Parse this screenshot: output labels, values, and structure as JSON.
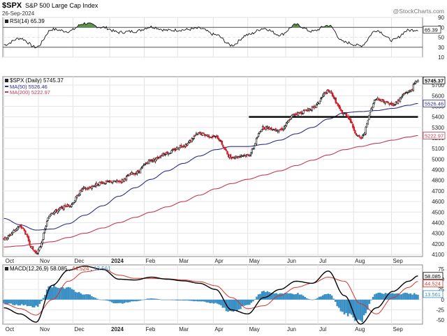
{
  "header": {
    "symbol": "$SPX",
    "name": "S&P 500 Large Cap Index",
    "date": "26-Sep-2024",
    "credit": "@StockCharts.com"
  },
  "colors": {
    "price_up": "#111111",
    "price_down": "#d0202a",
    "ma50": "#2e2e8a",
    "ma200": "#c43a52",
    "macd": "#000000",
    "signal": "#d2352b",
    "histogram": "#3a8fc4",
    "rsi_fill": "#4b8a3a",
    "support": "#000000"
  },
  "chart_data": [
    {
      "panel": "rsi",
      "type": "line",
      "title": "RSI(14) 65.39",
      "last_label": "65.39",
      "y_ticks": [
        "90",
        "70",
        "50",
        "30",
        "10"
      ],
      "ylim": [
        10,
        90
      ],
      "overbought": 70,
      "oversold": 30,
      "x": [
        "2023-10-02",
        "2023-10-16",
        "2023-10-30",
        "2023-11-13",
        "2023-11-27",
        "2023-12-11",
        "2023-12-27",
        "2024-01-10",
        "2024-01-24",
        "2024-02-07",
        "2024-02-21",
        "2024-03-06",
        "2024-03-20",
        "2024-04-03",
        "2024-04-17",
        "2024-05-01",
        "2024-05-15",
        "2024-05-29",
        "2024-06-12",
        "2024-06-26",
        "2024-07-10",
        "2024-07-24",
        "2024-08-07",
        "2024-08-21",
        "2024-09-04",
        "2024-09-18",
        "2024-09-26"
      ],
      "values": [
        35,
        48,
        30,
        66,
        62,
        78,
        70,
        60,
        62,
        71,
        64,
        65,
        68,
        55,
        34,
        55,
        68,
        55,
        75,
        62,
        74,
        40,
        33,
        64,
        44,
        64,
        65.39
      ]
    },
    {
      "panel": "price",
      "type": "line",
      "title": "$SPX (Daily) 5745.37",
      "series_labels": [
        "MA(50) 5526.46",
        "MA(200) 5222.97"
      ],
      "last_labels": [
        "5745.37",
        "5526.46",
        "5222.97"
      ],
      "y_ticks": [
        "5700",
        "5600",
        "5500",
        "5400",
        "5300",
        "5200",
        "5100",
        "5000",
        "4900",
        "4800",
        "4700",
        "4600",
        "4500",
        "4400",
        "4300",
        "4200",
        "4100"
      ],
      "ylim": [
        4080,
        5780
      ],
      "support_level": 5400,
      "x_ticks": [
        "Oct",
        "Nov",
        "Dec",
        "2024",
        "Feb",
        "Mar",
        "Apr",
        "May",
        "Jun",
        "Jul",
        "Aug",
        "Sep"
      ],
      "x": [
        "2023-10-02",
        "2023-10-16",
        "2023-10-30",
        "2023-11-13",
        "2023-11-27",
        "2023-12-11",
        "2023-12-27",
        "2024-01-10",
        "2024-01-24",
        "2024-02-07",
        "2024-02-21",
        "2024-03-06",
        "2024-03-20",
        "2024-04-03",
        "2024-04-17",
        "2024-05-01",
        "2024-05-15",
        "2024-05-29",
        "2024-06-12",
        "2024-06-26",
        "2024-07-10",
        "2024-07-24",
        "2024-08-07",
        "2024-08-21",
        "2024-09-04",
        "2024-09-18",
        "2024-09-26"
      ],
      "close": [
        4250,
        4360,
        4120,
        4500,
        4560,
        4720,
        4780,
        4790,
        4870,
        4990,
        5060,
        5130,
        5240,
        5210,
        5020,
        5040,
        5300,
        5280,
        5430,
        5480,
        5640,
        5430,
        5200,
        5570,
        5520,
        5640,
        5745.37
      ],
      "ma50": [
        4440,
        4380,
        4330,
        4340,
        4390,
        4470,
        4560,
        4650,
        4730,
        4810,
        4890,
        4960,
        5030,
        5090,
        5120,
        5120,
        5140,
        5180,
        5240,
        5300,
        5380,
        5440,
        5450,
        5460,
        5480,
        5510,
        5526.46
      ],
      "ma200": [
        4170,
        4180,
        4200,
        4220,
        4260,
        4300,
        4350,
        4400,
        4450,
        4500,
        4550,
        4600,
        4660,
        4720,
        4770,
        4810,
        4850,
        4890,
        4940,
        4990,
        5040,
        5090,
        5120,
        5150,
        5180,
        5210,
        5222.97
      ]
    },
    {
      "panel": "macd",
      "type": "line",
      "title": "MACD(12,26,9) 58.085, 44.524, 13.561",
      "legend": {
        "name": "MACD(12,26,9)",
        "macd": "58.085",
        "signal": "44.524",
        "histogram": "13.561"
      },
      "last_labels": [
        "58.085",
        "44.524",
        "13.561"
      ],
      "y_ticks": [
        "75",
        "50",
        "25",
        "0",
        "-25",
        "-50"
      ],
      "ylim": [
        -60,
        85
      ],
      "x": [
        "2023-10-02",
        "2023-10-16",
        "2023-10-30",
        "2023-11-13",
        "2023-11-27",
        "2023-12-11",
        "2023-12-27",
        "2024-01-10",
        "2024-01-24",
        "2024-02-07",
        "2024-02-21",
        "2024-03-06",
        "2024-03-20",
        "2024-04-03",
        "2024-04-17",
        "2024-05-01",
        "2024-05-15",
        "2024-05-29",
        "2024-06-12",
        "2024-06-26",
        "2024-07-10",
        "2024-07-24",
        "2024-08-07",
        "2024-08-21",
        "2024-09-04",
        "2024-09-18",
        "2024-09-26"
      ],
      "macd": [
        -20,
        -35,
        -55,
        35,
        72,
        82,
        74,
        50,
        48,
        55,
        50,
        46,
        40,
        25,
        -25,
        -35,
        5,
        25,
        45,
        40,
        70,
        10,
        -60,
        -20,
        20,
        45,
        58.085
      ],
      "signal": [
        -10,
        -22,
        -38,
        0,
        45,
        68,
        75,
        60,
        52,
        52,
        51,
        48,
        44,
        34,
        5,
        -22,
        -15,
        10,
        30,
        40,
        55,
        45,
        -10,
        -35,
        5,
        30,
        44.524
      ],
      "histogram": [
        -10,
        -13,
        -17,
        35,
        27,
        14,
        -1,
        -10,
        -4,
        3,
        -1,
        -2,
        -4,
        -9,
        -30,
        -13,
        20,
        15,
        15,
        0,
        15,
        -35,
        -50,
        15,
        15,
        15,
        13.561
      ]
    }
  ]
}
